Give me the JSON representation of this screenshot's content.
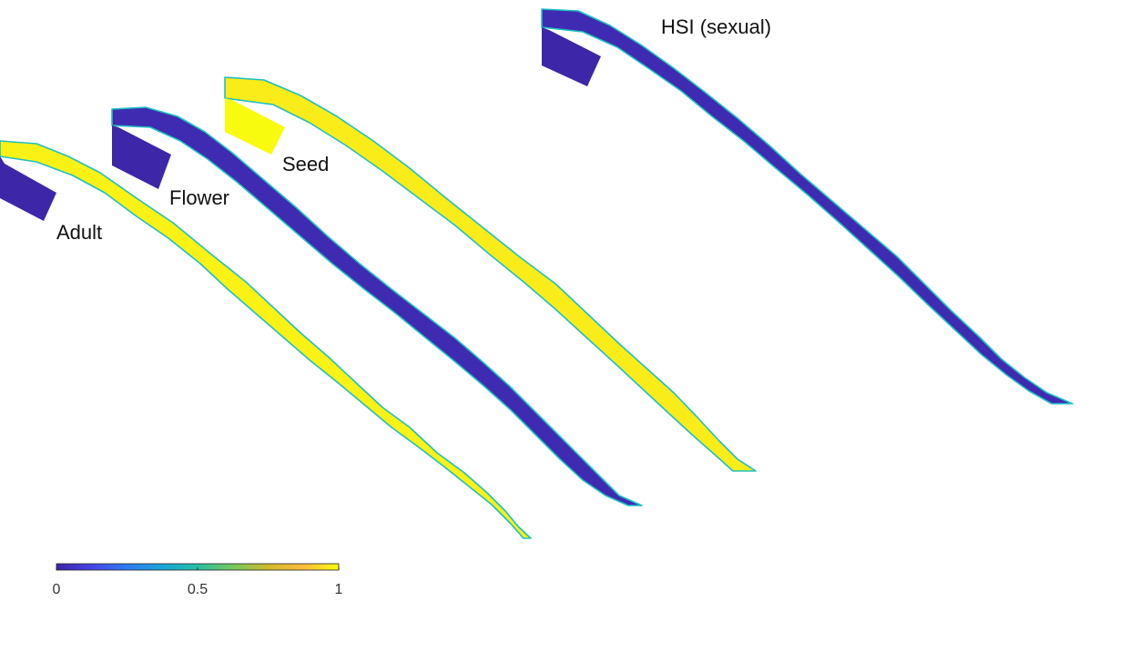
{
  "panels": [
    {
      "id": "adult",
      "label": "Adult",
      "fill_value": 0.98
    },
    {
      "id": "flower",
      "label": "Flower",
      "fill_value": 0.02
    },
    {
      "id": "seed",
      "label": "Seed",
      "fill_value": 0.97
    },
    {
      "id": "hsi",
      "label": "HSI (sexual)",
      "fill_value": 0.02
    }
  ],
  "colorbar": {
    "min": 0,
    "max": 1,
    "ticks": [
      {
        "value": 0,
        "label": "0"
      },
      {
        "value": 0.5,
        "label": "0.5"
      },
      {
        "value": 1,
        "label": "1"
      }
    ],
    "colormap": [
      "#3e26a8",
      "#4744e8",
      "#2e7cf2",
      "#1aa6d9",
      "#27bfa2",
      "#74c95c",
      "#d1ba2b",
      "#fdbd3c",
      "#f9fb0e"
    ]
  },
  "colors": {
    "edge_cyan": "#1fc0c0",
    "edge_blue": "#3a74f0",
    "edge_green": "#6fd05c",
    "edge_orange": "#f3a83a"
  }
}
